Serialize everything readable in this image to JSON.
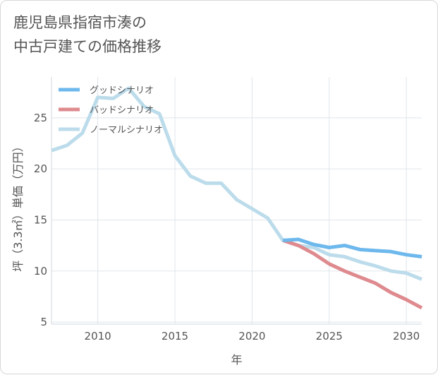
{
  "chart_data": {
    "type": "line",
    "title": "鹿児島県指宿市湊の\n中古戸建ての価格推移",
    "xlabel": "年",
    "ylabel": "坪（3.3㎡）単価（万円）",
    "xlim": [
      2007,
      2031
    ],
    "ylim": [
      4.8,
      29
    ],
    "xticks": [
      2010,
      2015,
      2020,
      2025,
      2030
    ],
    "yticks": [
      5,
      10,
      15,
      20,
      25
    ],
    "grid": true,
    "legend_position": "top-left",
    "series": [
      {
        "name": "グッドシナリオ",
        "color": "#6db8ec",
        "x": [
          2022,
          2023,
          2024,
          2025,
          2026,
          2027,
          2028,
          2029,
          2030,
          2031
        ],
        "y": [
          13.0,
          13.1,
          12.6,
          12.3,
          12.5,
          12.1,
          12.0,
          11.9,
          11.6,
          11.4
        ]
      },
      {
        "name": "バッドシナリオ",
        "color": "#de8a8e",
        "x": [
          2022,
          2023,
          2024,
          2025,
          2026,
          2027,
          2028,
          2029,
          2030,
          2031
        ],
        "y": [
          13.0,
          12.5,
          11.7,
          10.7,
          10.0,
          9.4,
          8.8,
          7.9,
          7.2,
          6.4
        ]
      },
      {
        "name": "ノーマルシナリオ",
        "color": "#bcdceb",
        "x": [
          2007,
          2008,
          2009,
          2010,
          2011,
          2012,
          2013,
          2014,
          2015,
          2016,
          2017,
          2018,
          2019,
          2020,
          2021,
          2022,
          2023,
          2024,
          2025,
          2026,
          2027,
          2028,
          2029,
          2030,
          2031
        ],
        "y": [
          21.8,
          22.3,
          23.5,
          27.0,
          26.9,
          27.9,
          26.1,
          25.4,
          21.3,
          19.3,
          18.6,
          18.6,
          17.0,
          16.1,
          15.2,
          13.0,
          12.5,
          12.3,
          11.6,
          11.4,
          10.9,
          10.5,
          10.0,
          9.8,
          9.2
        ]
      }
    ]
  }
}
